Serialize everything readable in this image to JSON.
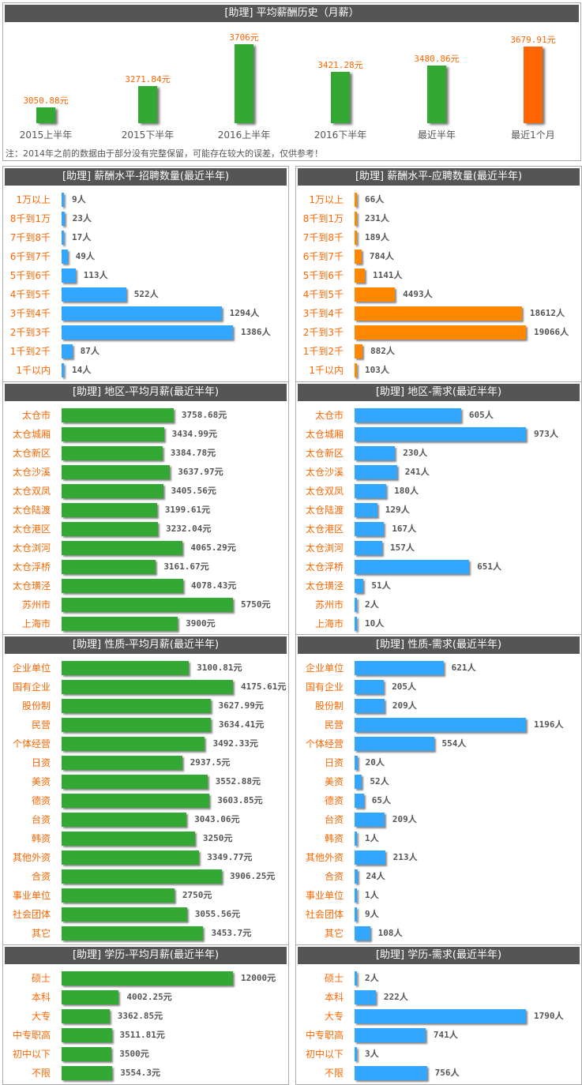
{
  "chart_data": [
    {
      "type": "bar",
      "title": "[助理] 平均薪酬历史（月薪）",
      "categories": [
        "2015上半年",
        "2015下半年",
        "2016上半年",
        "2016下半年",
        "最近半年",
        "最近1个月"
      ],
      "values": [
        3050.88,
        3271.84,
        3706,
        3421.28,
        3480.86,
        3679.91
      ],
      "value_labels": [
        "3050.88元",
        "3271.84元",
        "3706元",
        "3421.28元",
        "3480.86元",
        "3679.91元"
      ],
      "colors": [
        "#33a933",
        "#33a933",
        "#33a933",
        "#33a933",
        "#33a933",
        "#ff6600"
      ],
      "note": "注：2014年之前的数据由于部分没有完整保留，可能存在较大的误差，仅供参考！"
    },
    {
      "type": "bar",
      "orientation": "horizontal",
      "title": "[助理] 薪酬水平-招聘数量(最近半年)",
      "unit": "人",
      "color": "#33a6ff",
      "categories": [
        "1万以上",
        "8千到1万",
        "7千到8千",
        "6千到7千",
        "5千到6千",
        "4千到5千",
        "3千到4千",
        "2千到3千",
        "1千到2千",
        "1千以内"
      ],
      "values": [
        9,
        23,
        17,
        49,
        113,
        522,
        1294,
        1386,
        87,
        14
      ]
    },
    {
      "type": "bar",
      "orientation": "horizontal",
      "title": "[助理] 薪酬水平-应聘数量(最近半年)",
      "unit": "人",
      "color": "#ff8800",
      "categories": [
        "1万以上",
        "8千到1万",
        "7千到8千",
        "6千到7千",
        "5千到6千",
        "4千到5千",
        "3千到4千",
        "2千到3千",
        "1千到2千",
        "1千以内"
      ],
      "values": [
        66,
        231,
        189,
        784,
        1141,
        4493,
        18612,
        19066,
        882,
        103
      ]
    },
    {
      "type": "bar",
      "orientation": "horizontal",
      "title": "[助理] 地区-平均月薪(最近半年)",
      "unit": "元",
      "color": "#33a933",
      "categories": [
        "太仓市",
        "太仓城厢",
        "太仓新区",
        "太仓沙溪",
        "太仓双凤",
        "太仓陆渡",
        "太仓港区",
        "太仓浏河",
        "太仓浮桥",
        "太仓璜泾",
        "苏州市",
        "上海市"
      ],
      "values": [
        3758.68,
        3434.99,
        3384.78,
        3637.97,
        3405.56,
        3199.61,
        3232.04,
        4065.29,
        3161.67,
        4078.43,
        5750,
        3900
      ]
    },
    {
      "type": "bar",
      "orientation": "horizontal",
      "title": "[助理] 地区-需求(最近半年)",
      "unit": "人",
      "color": "#33a6ff",
      "categories": [
        "太仓市",
        "太仓城厢",
        "太仓新区",
        "太仓沙溪",
        "太仓双凤",
        "太仓陆渡",
        "太仓港区",
        "太仓浏河",
        "太仓浮桥",
        "太仓璜泾",
        "苏州市",
        "上海市"
      ],
      "values": [
        605,
        973,
        230,
        241,
        180,
        129,
        167,
        157,
        651,
        51,
        2,
        10
      ]
    },
    {
      "type": "bar",
      "orientation": "horizontal",
      "title": "[助理] 性质-平均月薪(最近半年)",
      "unit": "元",
      "color": "#33a933",
      "categories": [
        "企业单位",
        "国有企业",
        "股份制",
        "民营",
        "个体经营",
        "日资",
        "美资",
        "德资",
        "台资",
        "韩资",
        "其他外资",
        "合资",
        "事业单位",
        "社会团体",
        "其它"
      ],
      "values": [
        3100.81,
        4175.61,
        3627.99,
        3634.41,
        3492.33,
        2937.5,
        3552.88,
        3603.85,
        3043.06,
        3250,
        3349.77,
        3906.25,
        2750,
        3055.56,
        3453.7
      ]
    },
    {
      "type": "bar",
      "orientation": "horizontal",
      "title": "[助理] 性质-需求(最近半年)",
      "unit": "人",
      "color": "#33a6ff",
      "categories": [
        "企业单位",
        "国有企业",
        "股份制",
        "民营",
        "个体经营",
        "日资",
        "美资",
        "德资",
        "台资",
        "韩资",
        "其他外资",
        "合资",
        "事业单位",
        "社会团体",
        "其它"
      ],
      "values": [
        621,
        205,
        209,
        1196,
        554,
        20,
        52,
        65,
        209,
        1,
        213,
        24,
        1,
        9,
        108
      ]
    },
    {
      "type": "bar",
      "orientation": "horizontal",
      "title": "[助理] 学历-平均月薪(最近半年)",
      "unit": "元",
      "color": "#33a933",
      "categories": [
        "硕士",
        "本科",
        "大专",
        "中专职高",
        "初中以下",
        "不限"
      ],
      "values": [
        12000,
        4002.25,
        3362.85,
        3511.81,
        3500,
        3554.3
      ]
    },
    {
      "type": "bar",
      "orientation": "horizontal",
      "title": "[助理] 学历-需求(最近半年)",
      "unit": "人",
      "color": "#33a6ff",
      "categories": [
        "硕士",
        "本科",
        "大专",
        "中专职高",
        "初中以下",
        "不限"
      ],
      "values": [
        2,
        222,
        1790,
        741,
        3,
        756
      ]
    }
  ]
}
